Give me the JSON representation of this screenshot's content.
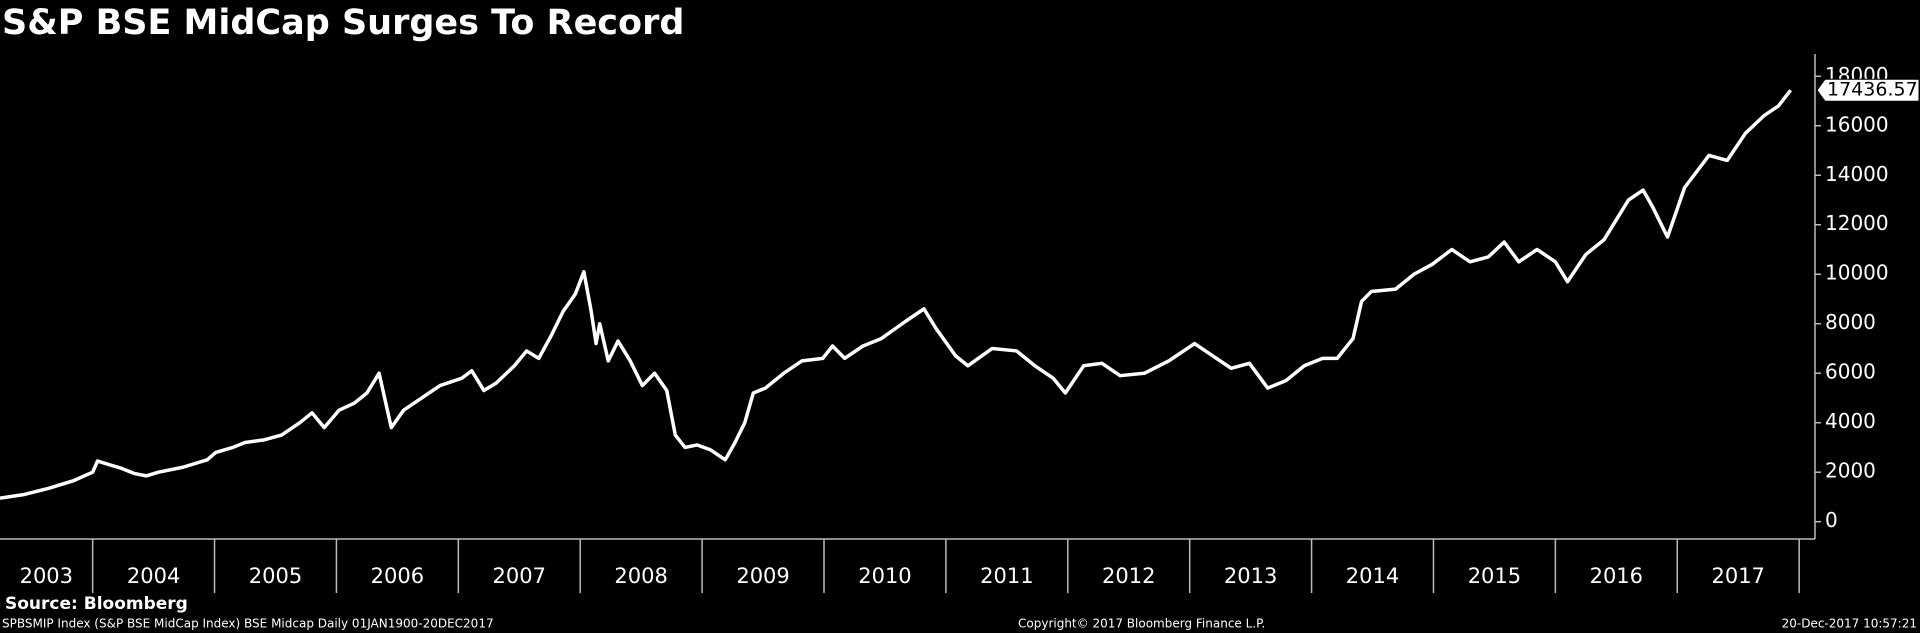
{
  "chart_data": {
    "type": "line",
    "title": "S&P BSE MidCap Surges To Record",
    "annotations": [
      "Source: Bloomberg",
      "SPBSMIP Index (S&P BSE MidCap Index) BSE Midcap  Daily 01JAN1900-20DEC2017",
      "Copyright© 2017 Bloomberg Finance L.P.",
      "20-Dec-2017 10:57:21"
    ],
    "x": [
      2003.24,
      2003.44,
      2003.64,
      2003.84,
      2004.0,
      2004.04,
      2004.14,
      2004.24,
      2004.34,
      2004.44,
      2004.54,
      2004.74,
      2004.94,
      2005.01,
      2005.15,
      2005.25,
      2005.4,
      2005.55,
      2005.7,
      2005.8,
      2005.9,
      2006.02,
      2006.15,
      2006.25,
      2006.35,
      2006.45,
      2006.55,
      2006.7,
      2006.85,
      2007.03,
      2007.11,
      2007.21,
      2007.31,
      2007.46,
      2007.56,
      2007.66,
      2007.76,
      2007.86,
      2007.96,
      2008.03,
      2008.09,
      2008.13,
      2008.16,
      2008.23,
      2008.31,
      2008.41,
      2008.51,
      2008.61,
      2008.71,
      2008.78,
      2008.86,
      2008.96,
      2009.07,
      2009.19,
      2009.27,
      2009.35,
      2009.42,
      2009.52,
      2009.67,
      2009.82,
      2009.99,
      2010.07,
      2010.17,
      2010.32,
      2010.47,
      2010.67,
      2010.82,
      2010.92,
      2011.08,
      2011.18,
      2011.38,
      2011.58,
      2011.73,
      2011.88,
      2011.98,
      2012.13,
      2012.28,
      2012.43,
      2012.63,
      2012.83,
      2013.04,
      2013.19,
      2013.34,
      2013.49,
      2013.64,
      2013.79,
      2013.94,
      2014.09,
      2014.21,
      2014.34,
      2014.41,
      2014.49,
      2014.69,
      2014.84,
      2014.99,
      2015.15,
      2015.3,
      2015.45,
      2015.58,
      2015.7,
      2015.85,
      2016.0,
      2016.1,
      2016.25,
      2016.4,
      2016.6,
      2016.72,
      2016.8,
      2016.92,
      2017.06,
      2017.26,
      2017.41,
      2017.56,
      2017.71,
      2017.83,
      2017.93
    ],
    "series": [
      {
        "name": "SPBSMIP Index",
        "color": "#ffffff",
        "values": [
          950,
          1100,
          1350,
          1650,
          2000,
          2450,
          2300,
          2150,
          1950,
          1850,
          2000,
          2200,
          2500,
          2800,
          3000,
          3200,
          3300,
          3500,
          4000,
          4400,
          3800,
          4500,
          4800,
          5200,
          6000,
          3800,
          4500,
          5000,
          5500,
          5800,
          6100,
          5300,
          5600,
          6300,
          6900,
          6600,
          7500,
          8500,
          9200,
          10100,
          8500,
          7200,
          8000,
          6500,
          7300,
          6500,
          5500,
          6000,
          5300,
          3500,
          3000,
          3100,
          2900,
          2500,
          3200,
          4000,
          5200,
          5400,
          6000,
          6500,
          6600,
          7100,
          6600,
          7100,
          7400,
          8100,
          8600,
          7800,
          6700,
          6300,
          7000,
          6900,
          6300,
          5800,
          5200,
          6300,
          6400,
          5900,
          6000,
          6500,
          7200,
          6700,
          6200,
          6400,
          5400,
          5700,
          6300,
          6600,
          6600,
          7400,
          8900,
          9300,
          9400,
          10000,
          10400,
          11000,
          10500,
          10700,
          11300,
          10500,
          11000,
          10500,
          9700,
          10800,
          11400,
          13000,
          13400,
          12700,
          11500,
          13500,
          14800,
          14600,
          15700,
          16400,
          16800,
          17436.57
        ]
      }
    ],
    "xlim": [
      2003.24,
      2018.13
    ],
    "xticks": [
      {
        "value": 2003.5,
        "label": "2003"
      },
      {
        "value": 2004.5,
        "label": "2004"
      },
      {
        "value": 2005.5,
        "label": "2005"
      },
      {
        "value": 2006.5,
        "label": "2006"
      },
      {
        "value": 2007.5,
        "label": "2007"
      },
      {
        "value": 2008.5,
        "label": "2008"
      },
      {
        "value": 2009.5,
        "label": "2009"
      },
      {
        "value": 2010.5,
        "label": "2010"
      },
      {
        "value": 2011.5,
        "label": "2011"
      },
      {
        "value": 2012.5,
        "label": "2012"
      },
      {
        "value": 2013.5,
        "label": "2013"
      },
      {
        "value": 2014.5,
        "label": "2014"
      },
      {
        "value": 2015.5,
        "label": "2015"
      },
      {
        "value": 2016.5,
        "label": "2016"
      },
      {
        "value": 2017.5,
        "label": "2017"
      }
    ],
    "ylim": [
      -700,
      18900
    ],
    "yticks": [
      0,
      2000,
      4000,
      6000,
      8000,
      10000,
      12000,
      14000,
      16000,
      18000
    ],
    "y_axis_side": "right",
    "grid": false,
    "last_value_label": true
  }
}
